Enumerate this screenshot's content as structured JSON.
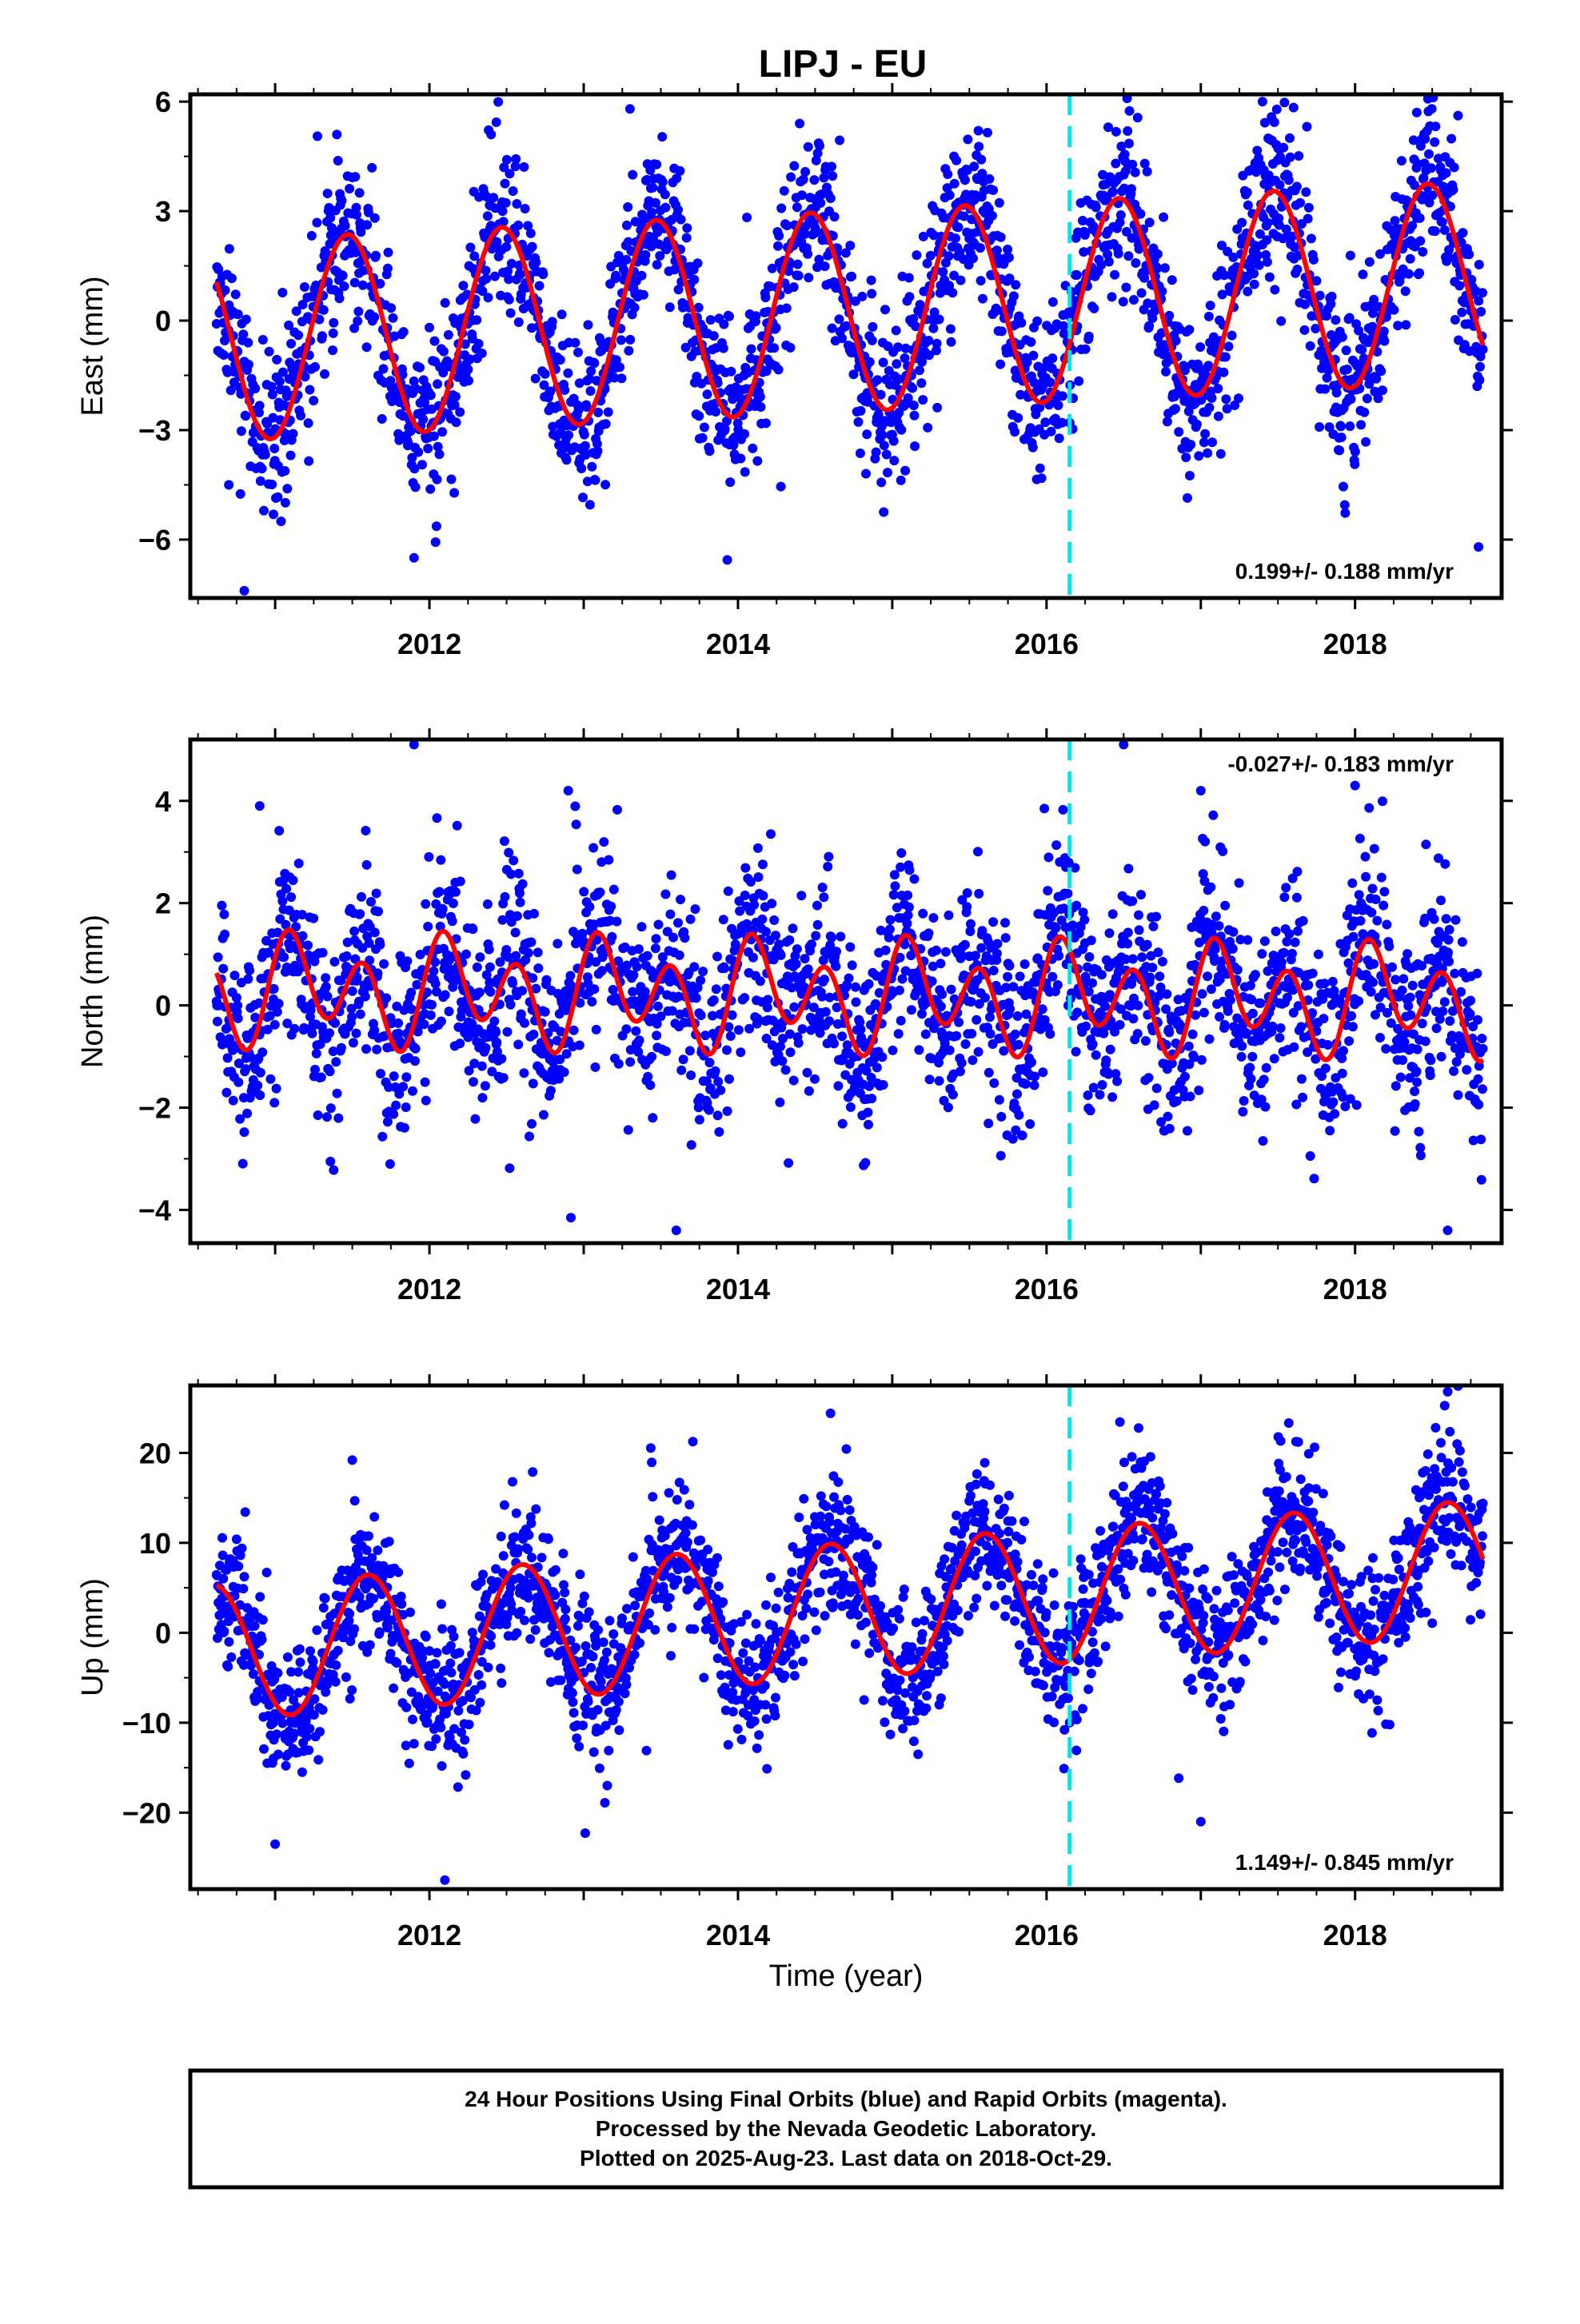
{
  "chart_data": {
    "type": "scatter",
    "title": "LIPJ - EU",
    "xlabel": "Time (year)",
    "x_ticks": [
      2012,
      2014,
      2016,
      2018
    ],
    "xlim": [
      2010.45,
      2018.95
    ],
    "data_range": [
      2010.62,
      2018.83
    ],
    "offset_marker_year": 2016.15,
    "colors": {
      "points": "#0000ff",
      "fit": "#ff0000",
      "offset_line": "#00e5e5",
      "frame": "#000000"
    },
    "panels": [
      {
        "ylabel": "East (mm)",
        "ylim": [
          -7.6,
          6.2
        ],
        "y_ticks": [
          -6,
          -3,
          0,
          3,
          6
        ],
        "y_tick_labels": [
          "−6",
          "−3",
          "0",
          "3",
          "6"
        ],
        "rate_text": "0.199+/- 0.188 mm/yr",
        "rate_position": "bottom-right",
        "fit": {
          "amp1": 2.75,
          "phase1": 0.22,
          "amp2": 0.0,
          "phase2": 0.0,
          "trend": 0.199,
          "offset": 0.25
        },
        "noise": 1.1,
        "samples": [
          {
            "x": 2010.7,
            "y": -4.5
          },
          {
            "x": 2010.8,
            "y": -7.4
          },
          {
            "x": 2011.4,
            "y": 5.1
          },
          {
            "x": 2011.9,
            "y": -6.5
          },
          {
            "x": 2012.4,
            "y": 5.1
          },
          {
            "x": 2013.3,
            "y": 5.8
          },
          {
            "x": 2014.4,
            "y": 5.4
          },
          {
            "x": 2015.4,
            "y": 4.5
          },
          {
            "x": 2016.4,
            "y": 5.3
          },
          {
            "x": 2017.4,
            "y": 6.0
          },
          {
            "x": 2018.4,
            "y": 5.7
          },
          {
            "x": 2018.8,
            "y": -6.2
          }
        ]
      },
      {
        "ylabel": "North (mm)",
        "ylim": [
          -4.65,
          5.2
        ],
        "y_ticks": [
          -4,
          -2,
          0,
          2,
          4
        ],
        "y_tick_labels": [
          "−4",
          "−2",
          "0",
          "2",
          "4"
        ],
        "rate_text": "-0.027+/- 0.183 mm/yr",
        "rate_position": "top-right",
        "fit": {
          "amp1": 0.45,
          "phase1": 0.95,
          "amp2": 0.85,
          "phase2": 0.95,
          "trend": -0.027,
          "offset": 0.2
        },
        "noise": 0.9,
        "samples": [
          {
            "x": 2010.9,
            "y": 3.9
          },
          {
            "x": 2011.9,
            "y": 5.1
          },
          {
            "x": 2012.9,
            "y": 4.2
          },
          {
            "x": 2013.6,
            "y": -4.4
          },
          {
            "x": 2016.5,
            "y": 5.1
          },
          {
            "x": 2017.0,
            "y": 4.2
          },
          {
            "x": 2018.0,
            "y": 4.3
          },
          {
            "x": 2018.6,
            "y": -4.4
          }
        ]
      },
      {
        "ylabel": "Up (mm)",
        "ylim": [
          -28.5,
          27.5
        ],
        "y_ticks": [
          -20,
          -10,
          0,
          10,
          20
        ],
        "y_tick_labels": [
          "−20",
          "−10",
          "0",
          "10",
          "20"
        ],
        "rate_text": "1.149+/- 0.845 mm/yr",
        "rate_position": "bottom-right",
        "fit": {
          "amp1": 7.5,
          "phase1": 0.35,
          "amp2": 0.0,
          "phase2": 0.0,
          "trend": 1.149,
          "offset": 2.5
        },
        "noise": 3.8,
        "samples": [
          {
            "x": 2012.1,
            "y": -27.5
          },
          {
            "x": 2011.0,
            "y": -23.5
          },
          {
            "x": 2011.5,
            "y": 19.2
          },
          {
            "x": 2014.6,
            "y": 24.4
          },
          {
            "x": 2015.6,
            "y": 18.9
          },
          {
            "x": 2017.7,
            "y": 19.9
          },
          {
            "x": 2018.6,
            "y": 26.8
          },
          {
            "x": 2017.0,
            "y": -21.0
          }
        ]
      }
    ],
    "caption": [
      "24 Hour Positions Using Final Orbits (blue) and Rapid Orbits (magenta).",
      "Processed by the Nevada Geodetic Laboratory.",
      "Plotted on 2025-Aug-23. Last data on 2018-Oct-29."
    ]
  }
}
